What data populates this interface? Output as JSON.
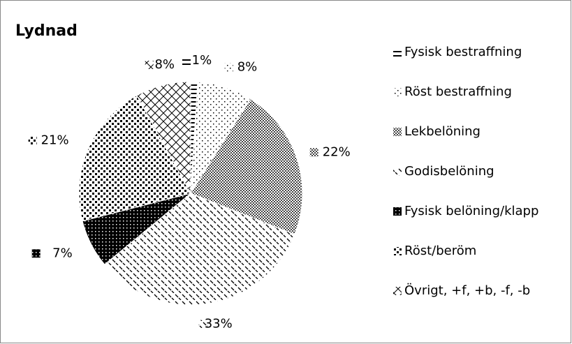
{
  "chart_data": {
    "type": "pie",
    "title": "Lydnad",
    "categories": [
      "Fysisk bestraffning",
      "Röst bestraffning",
      "Lekbelöning",
      "Godisbelöning",
      "Fysisk belöning/klapp",
      "Röst/beröm",
      "Övrigt, +f, +b, -f, -b"
    ],
    "values": [
      1,
      8,
      22,
      33,
      7,
      21,
      8
    ],
    "value_labels": [
      "1%",
      "8%",
      "22%",
      "33%",
      "7%",
      "21%",
      "8%"
    ],
    "legend": "right"
  }
}
